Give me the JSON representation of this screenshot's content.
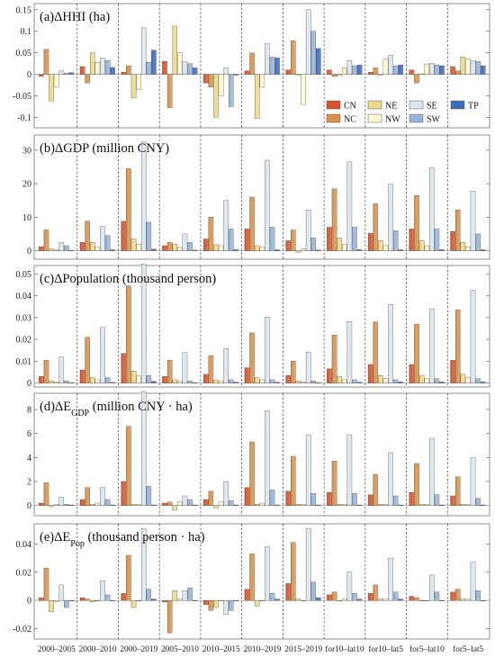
{
  "chart_data": [
    {
      "type": "bar",
      "title_main": "(a)ΔHHI (ha)",
      "title_sub": "",
      "title_rest": "",
      "ylim": [
        -0.12,
        0.16
      ],
      "yticks": [
        -0.1,
        -0.05,
        0,
        0.05,
        0.1,
        0.15
      ],
      "ytick_labels": [
        "-0.1",
        "-0.05",
        "0",
        "0.05",
        "0.1",
        "0.15"
      ],
      "categories": [
        "2000–2005",
        "2000–2010",
        "2000–2019",
        "2005–2010",
        "2010–2015",
        "2010–2019",
        "2015–2019",
        "for10–lat10",
        "for10–lat5",
        "for5–lat10",
        "for5–lat5"
      ],
      "series": [
        {
          "name": "CN",
          "values": [
            -0.005,
            0.018,
            0.005,
            0.03,
            -0.02,
            0.008,
            0.01,
            0.01,
            0.005,
            0.01,
            0.018
          ]
        },
        {
          "name": "NC",
          "values": [
            0.058,
            -0.02,
            0.02,
            -0.078,
            -0.03,
            0.05,
            0.078,
            -0.005,
            0.015,
            -0.02,
            0.008
          ]
        },
        {
          "name": "NE",
          "values": [
            -0.062,
            0.05,
            -0.055,
            0.112,
            -0.1,
            -0.102,
            -0.002,
            -0.003,
            -0.002,
            0.001,
            0.04
          ]
        },
        {
          "name": "NW",
          "values": [
            -0.03,
            0.028,
            -0.035,
            0.05,
            -0.05,
            -0.03,
            -0.07,
            0.015,
            0.035,
            0.024,
            0.036
          ]
        },
        {
          "name": "SE",
          "values": [
            0.008,
            0.038,
            0.108,
            0.03,
            0.015,
            0.072,
            0.15,
            0.032,
            0.044,
            0.026,
            0.032
          ]
        },
        {
          "name": "SW",
          "values": [
            0.003,
            0.032,
            0.028,
            0.025,
            -0.075,
            0.04,
            0.1,
            0.02,
            0.02,
            0.022,
            0.03
          ]
        },
        {
          "name": "TP",
          "values": [
            0.004,
            0.016,
            0.056,
            0.015,
            -0.002,
            0.038,
            0.06,
            0.022,
            0.022,
            0.02,
            0.02
          ]
        }
      ]
    },
    {
      "type": "bar",
      "title_main": "(b)ΔGDP (million CNY)",
      "title_sub": "",
      "title_rest": "",
      "ylim": [
        -2,
        34
      ],
      "yticks": [
        0,
        10,
        20,
        30
      ],
      "ytick_labels": [
        "0",
        "10",
        "20",
        "30"
      ],
      "categories": [
        "2000–2005",
        "2000–2010",
        "2000–2019",
        "2005–2010",
        "2010–2015",
        "2010–2019",
        "2015–2019",
        "for10–lat10",
        "for10–lat5",
        "for5–lat10",
        "for5–lat5"
      ],
      "series": [
        {
          "name": "CN",
          "values": [
            1.2,
            2.5,
            8.8,
            1.5,
            3.5,
            6.5,
            3,
            7,
            5.2,
            6.5,
            5.8
          ]
        },
        {
          "name": "NC",
          "values": [
            6.2,
            8.8,
            24.5,
            2.5,
            10,
            16,
            6.2,
            18.5,
            14,
            16.5,
            12.2
          ]
        },
        {
          "name": "NE",
          "values": [
            0.5,
            2.5,
            3.5,
            2,
            1.8,
            1.5,
            -0.5,
            3.8,
            3,
            3,
            2.5
          ]
        },
        {
          "name": "NW",
          "values": [
            0.3,
            1.2,
            2,
            1,
            1.5,
            1,
            0.5,
            2,
            1.5,
            1.5,
            1.2
          ]
        },
        {
          "name": "SE",
          "values": [
            2.5,
            7.2,
            32.5,
            5,
            15,
            27,
            12.2,
            26.5,
            19.8,
            24.8,
            17.8
          ]
        },
        {
          "name": "SW",
          "values": [
            1.5,
            4.5,
            8.5,
            2.5,
            6.5,
            7,
            3.8,
            7,
            6,
            6.5,
            5
          ]
        },
        {
          "name": "TP",
          "values": [
            0.1,
            0.3,
            0.5,
            0.2,
            0.3,
            0.3,
            0.2,
            0.3,
            0.3,
            0.3,
            0.3
          ]
        }
      ]
    },
    {
      "type": "bar",
      "title_main": "(c)ΔPopulation (thousand person)",
      "title_sub": "",
      "title_rest": "",
      "ylim": [
        -0.001,
        0.053
      ],
      "yticks": [
        0,
        0.01,
        0.02,
        0.03,
        0.04,
        0.05
      ],
      "ytick_labels": [
        "0",
        "0.01",
        "0.02",
        "0.03",
        "0.04",
        "0.05"
      ],
      "categories": [
        "2000–2005",
        "2000–2010",
        "2000–2019",
        "2005–2010",
        "2010–2015",
        "2010–2019",
        "2015–2019",
        "for10–lat10",
        "for10–lat5",
        "for5–lat10",
        "for5–lat5"
      ],
      "series": [
        {
          "name": "CN",
          "values": [
            0.003,
            0.006,
            0.0135,
            0.003,
            0.004,
            0.007,
            0.0035,
            0.0065,
            0.0085,
            0.0085,
            0.0105
          ]
        },
        {
          "name": "NC",
          "values": [
            0.0105,
            0.021,
            0.0445,
            0.0105,
            0.0125,
            0.023,
            0.01,
            0.022,
            0.028,
            0.027,
            0.0335
          ]
        },
        {
          "name": "NE",
          "values": [
            0.001,
            0.0025,
            0.0055,
            0.0015,
            0.0015,
            0.0025,
            0.001,
            0.003,
            0.0035,
            0.0035,
            0.004
          ]
        },
        {
          "name": "NW",
          "values": [
            0.0005,
            0.0015,
            0.0035,
            0.001,
            0.001,
            0.0015,
            0.0005,
            0.0015,
            0.002,
            0.002,
            0.0025
          ]
        },
        {
          "name": "SE",
          "values": [
            0.012,
            0.0255,
            0.0545,
            0.014,
            0.0158,
            0.0302,
            0.0142,
            0.0282,
            0.036,
            0.034,
            0.0425
          ]
        },
        {
          "name": "SW",
          "values": [
            0.001,
            0.0025,
            0.0035,
            0.001,
            0.0015,
            0.0015,
            0.001,
            0.0015,
            0.0015,
            0.002,
            0.002
          ]
        },
        {
          "name": "TP",
          "values": [
            0.0002,
            0.0003,
            0.0008,
            0.0002,
            0.0004,
            0.0004,
            0.0002,
            0.0004,
            0.0005,
            0.0005,
            0.0005
          ]
        }
      ]
    },
    {
      "type": "bar",
      "title_main": "(d)ΔE",
      "title_sub": "GDP",
      "title_rest": " (million CNY · ha)",
      "ylim": [
        -0.7,
        9.2
      ],
      "yticks": [
        0,
        2,
        4,
        6,
        8
      ],
      "ytick_labels": [
        "0",
        "2",
        "4",
        "6",
        "8"
      ],
      "categories": [
        "2000–2005",
        "2000–2010",
        "2000–2019",
        "2005–2010",
        "2010–2015",
        "2010–2019",
        "2015–2019",
        "for10–lat10",
        "for10–lat5",
        "for5–lat10",
        "for5–lat5"
      ],
      "series": [
        {
          "name": "CN",
          "values": [
            0.2,
            0.5,
            2,
            0.2,
            0.5,
            1.5,
            1.2,
            1.1,
            0.9,
            1.1,
            0.8
          ]
        },
        {
          "name": "NC",
          "values": [
            1.9,
            1.5,
            6.6,
            0.3,
            1.2,
            5.3,
            4.1,
            3.7,
            2.6,
            3.5,
            2.4
          ]
        },
        {
          "name": "NE",
          "values": [
            -0.1,
            0.1,
            0.1,
            -0.4,
            -0.2,
            0.1,
            0.1,
            0.1,
            0.1,
            0.1,
            0.1
          ]
        },
        {
          "name": "NW",
          "values": [
            0.1,
            0.2,
            0.1,
            0.3,
            0.3,
            0.2,
            0.1,
            0.1,
            0.1,
            0.1,
            0.1
          ]
        },
        {
          "name": "SE",
          "values": [
            0.7,
            1.5,
            9.5,
            0.8,
            2,
            7.9,
            5.9,
            5.9,
            4.4,
            5.6,
            4
          ]
        },
        {
          "name": "SW",
          "values": [
            0.1,
            0.5,
            1.6,
            0.5,
            0.4,
            1.3,
            1,
            1,
            0.8,
            0.9,
            0.6
          ]
        },
        {
          "name": "TP",
          "values": [
            0.05,
            0.05,
            0.05,
            0.05,
            0.05,
            0.05,
            0.05,
            0.05,
            0.05,
            0.05,
            0.05
          ]
        }
      ]
    },
    {
      "type": "bar",
      "title_main": "(e)ΔE",
      "title_sub": "Pop",
      "title_rest": " (thousand person · ha)",
      "ylim": [
        -0.026,
        0.053
      ],
      "yticks": [
        -0.02,
        0,
        0.02,
        0.04
      ],
      "ytick_labels": [
        "-0.02",
        "0",
        "0.02",
        "0.04"
      ],
      "categories": [
        "2000–2005",
        "2000–2010",
        "2000–2019",
        "2005–2010",
        "2010–2015",
        "2010–2019",
        "2015–2019",
        "for10–lat10",
        "for10–lat5",
        "for5–lat10",
        "for5–lat5"
      ],
      "series": [
        {
          "name": "CN",
          "values": [
            0.002,
            0.002,
            0.005,
            -0.001,
            -0.003,
            0.008,
            0.012,
            0.004,
            0.005,
            0.003,
            0.006
          ]
        },
        {
          "name": "NC",
          "values": [
            0.023,
            0.001,
            0.032,
            -0.023,
            -0.007,
            0.033,
            0.041,
            0.006,
            0.011,
            0.002,
            0.008
          ]
        },
        {
          "name": "NE",
          "values": [
            -0.008,
            -0.001,
            -0.005,
            0.007,
            -0.005,
            -0.004,
            0.001,
            0,
            0.001,
            0,
            0.001
          ]
        },
        {
          "name": "NW",
          "values": [
            -0.001,
            0,
            0,
            0.001,
            0,
            0,
            0,
            0.001,
            0.001,
            0,
            0.001
          ]
        },
        {
          "name": "SE",
          "values": [
            0.011,
            0.014,
            0.051,
            0.007,
            -0.01,
            0.038,
            0.051,
            0.02,
            0.03,
            0.018,
            0.027
          ]
        },
        {
          "name": "SW",
          "values": [
            -0.005,
            0.004,
            0.008,
            0.009,
            -0.007,
            0.005,
            0.013,
            0.005,
            0.006,
            0.006,
            0.007
          ]
        },
        {
          "name": "TP",
          "values": [
            0,
            0,
            0.001,
            0,
            0,
            0.001,
            0.002,
            0.001,
            0.001,
            0,
            0
          ]
        }
      ]
    }
  ],
  "legend": {
    "entries": [
      {
        "name": "CN",
        "color": "#d4532f"
      },
      {
        "name": "NC",
        "color": "#d7914d"
      },
      {
        "name": "NE",
        "color": "#ebd98d"
      },
      {
        "name": "NW",
        "color": "#fcf7d4"
      },
      {
        "name": "SE",
        "color": "#d8e6f1"
      },
      {
        "name": "SW",
        "color": "#94b4da"
      },
      {
        "name": "TP",
        "color": "#3e6bc2"
      }
    ]
  },
  "colors": {
    "CN": "#d4532f",
    "NC": "#d7914d",
    "NE": "#ebd98d",
    "NW": "#fcf7d4",
    "SE": "#d8e6f1",
    "SW": "#94b4da",
    "TP": "#3e6bc2",
    "background": "#ffffff",
    "panel_border": "#777777"
  }
}
